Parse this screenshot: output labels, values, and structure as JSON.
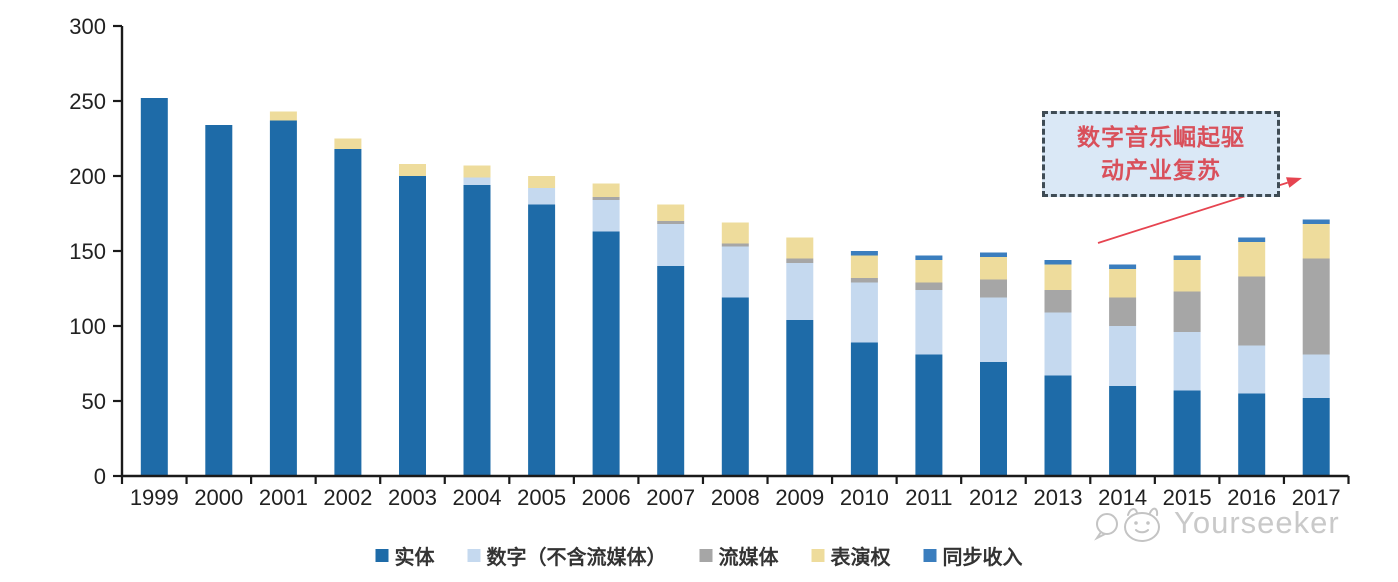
{
  "chart_data": {
    "type": "bar",
    "stacked": true,
    "title": "",
    "xlabel": "",
    "ylabel": "",
    "categories": [
      "1999",
      "2000",
      "2001",
      "2002",
      "2003",
      "2004",
      "2005",
      "2006",
      "2007",
      "2008",
      "2009",
      "2010",
      "2011",
      "2012",
      "2013",
      "2014",
      "2015",
      "2016",
      "2017"
    ],
    "series": [
      {
        "key": "physical",
        "name": "实体",
        "color": "#1E6BA8",
        "values": [
          252,
          234,
          237,
          218,
          200,
          194,
          181,
          163,
          140,
          119,
          104,
          89,
          81,
          76,
          67,
          60,
          57,
          55,
          52
        ]
      },
      {
        "key": "digital-ex-streaming",
        "name": "数字（不含流媒体）",
        "color": "#C5D9EF",
        "values": [
          0,
          0,
          0,
          0,
          0,
          5,
          11,
          21,
          28,
          34,
          38,
          40,
          43,
          43,
          42,
          40,
          39,
          32,
          29
        ]
      },
      {
        "key": "streaming",
        "name": "流媒体",
        "color": "#A6A6A6",
        "values": [
          0,
          0,
          0,
          0,
          0,
          0,
          0,
          2,
          2,
          2,
          3,
          3,
          5,
          12,
          15,
          19,
          27,
          46,
          64
        ]
      },
      {
        "key": "performance-rights",
        "name": "表演权",
        "color": "#EEDC9C",
        "values": [
          0,
          0,
          6,
          7,
          8,
          8,
          8,
          9,
          11,
          14,
          14,
          15,
          15,
          15,
          17,
          19,
          21,
          23,
          23
        ]
      },
      {
        "key": "sync-revenue",
        "name": "同步收入",
        "color": "#3B7EBE",
        "values": [
          0,
          0,
          0,
          0,
          0,
          0,
          0,
          0,
          0,
          0,
          0,
          3,
          3,
          3,
          3,
          3,
          3,
          3,
          3
        ]
      }
    ],
    "ylim": [
      0,
      300
    ],
    "yticks": [
      0,
      50,
      100,
      150,
      200,
      250,
      300
    ],
    "grid": false,
    "legend_position": "bottom"
  },
  "annotation": {
    "line1": "数字音乐崛起驱",
    "line2": "动产业复苏",
    "text_color": "#D9505B",
    "box_fill": "#DAE8F6",
    "box_border": "#3F4C55",
    "arrow_color": "#E64450"
  },
  "axis": {
    "line_color": "#1A1A1A",
    "label_color": "#212121"
  },
  "watermark": {
    "icon": "yourseeker-logo-icon",
    "text": "Yourseeker",
    "color": "#C9C9C9"
  }
}
